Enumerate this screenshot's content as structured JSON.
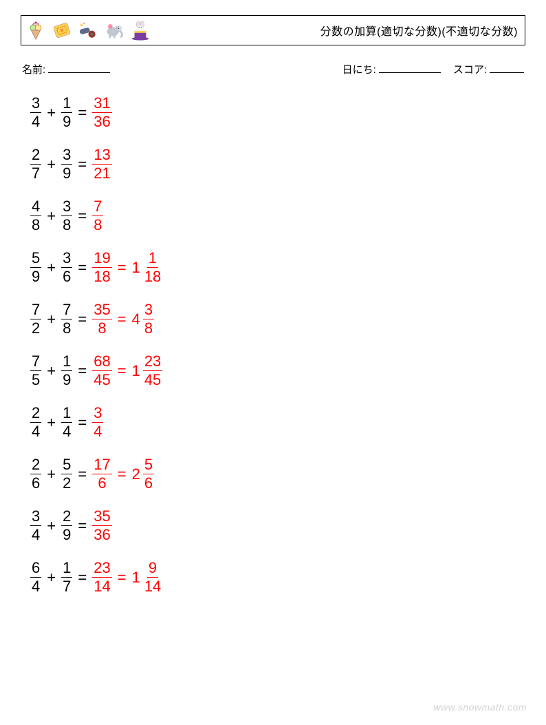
{
  "header": {
    "title": "分数の加算(適切な分数)(不適切な分数)"
  },
  "info": {
    "name_label": "名前:",
    "date_label": "日にち:",
    "score_label": "スコア:"
  },
  "colors": {
    "answer": "#ff0000",
    "text": "#000000",
    "background": "#ffffff",
    "border": "#000000"
  },
  "typography": {
    "title_fontsize": 16,
    "info_fontsize": 15,
    "problem_fontsize": 22
  },
  "problems": [
    {
      "a": {
        "n": 3,
        "d": 4
      },
      "b": {
        "n": 1,
        "d": 9
      },
      "result": {
        "n": 31,
        "d": 36
      }
    },
    {
      "a": {
        "n": 2,
        "d": 7
      },
      "b": {
        "n": 3,
        "d": 9
      },
      "result": {
        "n": 13,
        "d": 21
      }
    },
    {
      "a": {
        "n": 4,
        "d": 8
      },
      "b": {
        "n": 3,
        "d": 8
      },
      "result": {
        "n": 7,
        "d": 8
      }
    },
    {
      "a": {
        "n": 5,
        "d": 9
      },
      "b": {
        "n": 3,
        "d": 6
      },
      "result": {
        "n": 19,
        "d": 18
      },
      "mixed": {
        "w": 1,
        "n": 1,
        "d": 18
      }
    },
    {
      "a": {
        "n": 7,
        "d": 2
      },
      "b": {
        "n": 7,
        "d": 8
      },
      "result": {
        "n": 35,
        "d": 8
      },
      "mixed": {
        "w": 4,
        "n": 3,
        "d": 8
      }
    },
    {
      "a": {
        "n": 7,
        "d": 5
      },
      "b": {
        "n": 1,
        "d": 9
      },
      "result": {
        "n": 68,
        "d": 45
      },
      "mixed": {
        "w": 1,
        "n": 23,
        "d": 45
      }
    },
    {
      "a": {
        "n": 2,
        "d": 4
      },
      "b": {
        "n": 1,
        "d": 4
      },
      "result": {
        "n": 3,
        "d": 4
      }
    },
    {
      "a": {
        "n": 2,
        "d": 6
      },
      "b": {
        "n": 5,
        "d": 2
      },
      "result": {
        "n": 17,
        "d": 6
      },
      "mixed": {
        "w": 2,
        "n": 5,
        "d": 6
      }
    },
    {
      "a": {
        "n": 3,
        "d": 4
      },
      "b": {
        "n": 2,
        "d": 9
      },
      "result": {
        "n": 35,
        "d": 36
      }
    },
    {
      "a": {
        "n": 6,
        "d": 4
      },
      "b": {
        "n": 1,
        "d": 7
      },
      "result": {
        "n": 23,
        "d": 14
      },
      "mixed": {
        "w": 1,
        "n": 9,
        "d": 14
      }
    }
  ],
  "watermark": "www.snowmath.com"
}
